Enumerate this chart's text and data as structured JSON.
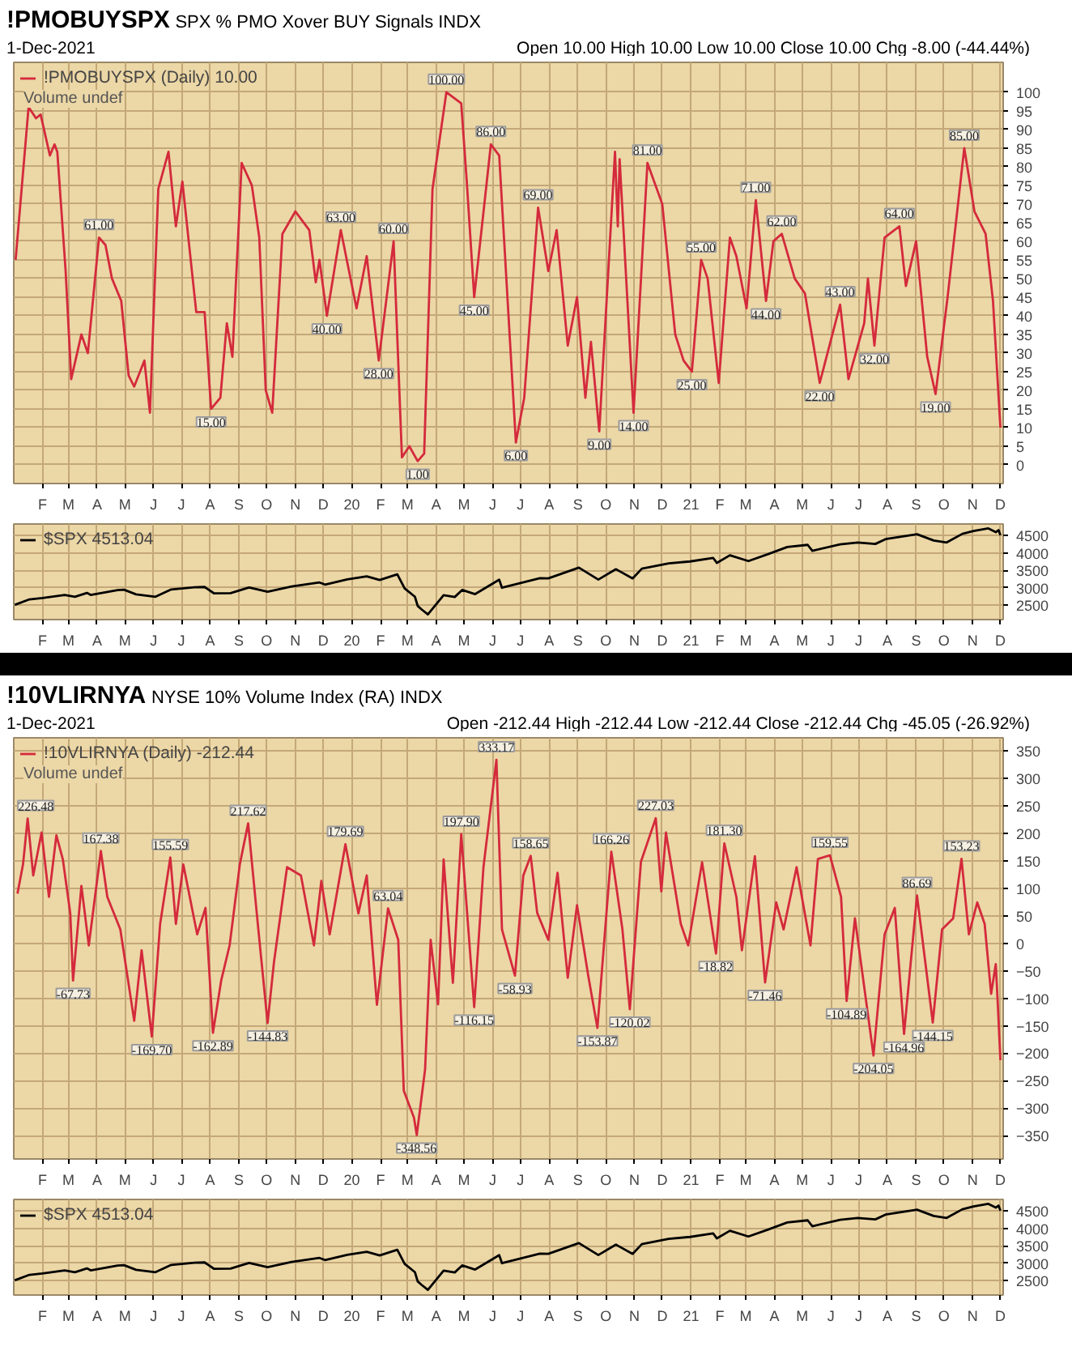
{
  "chart_data": [
    {
      "type": "line",
      "title": "!PMOBUYSPX",
      "subtitle": "SPX % PMO Xover BUY Signals INDX",
      "annotations": [
        "1-Dec-2021",
        "Open 10.00 High 10.00 Low 10.00 Close 10.00 Chg -8.00 (-44.44%)",
        "Volume undef",
        {
          "text": "61.00",
          "x": "2019-04-03",
          "y": 61
        },
        {
          "text": "15.00",
          "x": "2019-08-02",
          "y": 15
        },
        {
          "text": "40.00",
          "x": "2019-12-05",
          "y": 40
        },
        {
          "text": "63.00",
          "x": "2019-12-20",
          "y": 63
        },
        {
          "text": "28.00",
          "x": "2020-01-30",
          "y": 28
        },
        {
          "text": "60.00",
          "x": "2020-02-15",
          "y": 60
        },
        {
          "text": "1.00",
          "x": "2020-03-12",
          "y": 1
        },
        {
          "text": "100.00",
          "x": "2020-04-12",
          "y": 100
        },
        {
          "text": "45.00",
          "x": "2020-05-12",
          "y": 45
        },
        {
          "text": "86.00",
          "x": "2020-05-30",
          "y": 86
        },
        {
          "text": "6.00",
          "x": "2020-06-26",
          "y": 6
        },
        {
          "text": "69.00",
          "x": "2020-07-20",
          "y": 69
        },
        {
          "text": "9.00",
          "x": "2020-09-24",
          "y": 9
        },
        {
          "text": "14.00",
          "x": "2020-10-31",
          "y": 14
        },
        {
          "text": "81.00",
          "x": "2020-11-15",
          "y": 81
        },
        {
          "text": "25.00",
          "x": "2021-01-02",
          "y": 25
        },
        {
          "text": "55.00",
          "x": "2021-01-12",
          "y": 55
        },
        {
          "text": "71.00",
          "x": "2021-03-12",
          "y": 71
        },
        {
          "text": "44.00",
          "x": "2021-03-23",
          "y": 44
        },
        {
          "text": "62.00",
          "x": "2021-04-09",
          "y": 62
        },
        {
          "text": "22.00",
          "x": "2021-05-20",
          "y": 22
        },
        {
          "text": "43.00",
          "x": "2021-06-11",
          "y": 43
        },
        {
          "text": "32.00",
          "x": "2021-07-18",
          "y": 32
        },
        {
          "text": "64.00",
          "x": "2021-08-14",
          "y": 64
        },
        {
          "text": "19.00",
          "x": "2021-09-22",
          "y": 19
        },
        {
          "text": "85.00",
          "x": "2021-10-23",
          "y": 85
        }
      ],
      "series": [
        {
          "name": "!PMOBUYSPX (Daily) 10.00",
          "color": "#d42a3c",
          "x": [
            "2019-01-03",
            "2019-01-17",
            "2019-01-25",
            "2019-01-30",
            "2019-02-09",
            "2019-02-14",
            "2019-02-17",
            "2019-02-26",
            "2019-03-04",
            "2019-03-15",
            "2019-03-22",
            "2019-04-03",
            "2019-04-10",
            "2019-04-17",
            "2019-04-27",
            "2019-05-05",
            "2019-05-11",
            "2019-05-22",
            "2019-05-28",
            "2019-06-06",
            "2019-06-17",
            "2019-06-25",
            "2019-07-02",
            "2019-07-17",
            "2019-07-26",
            "2019-08-02",
            "2019-08-12",
            "2019-08-19",
            "2019-08-25",
            "2019-09-04",
            "2019-09-15",
            "2019-09-23",
            "2019-09-30",
            "2019-10-07",
            "2019-10-18",
            "2019-11-01",
            "2019-11-16",
            "2019-11-23",
            "2019-11-27",
            "2019-12-05",
            "2019-12-20",
            "2020-01-06",
            "2020-01-17",
            "2020-01-30",
            "2020-02-15",
            "2020-02-24",
            "2020-03-03",
            "2020-03-12",
            "2020-03-19",
            "2020-03-28",
            "2020-04-12",
            "2020-04-28",
            "2020-05-04",
            "2020-05-12",
            "2020-05-30",
            "2020-06-08",
            "2020-06-26",
            "2020-07-05",
            "2020-07-20",
            "2020-07-31",
            "2020-08-09",
            "2020-08-21",
            "2020-08-31",
            "2020-09-09",
            "2020-09-15",
            "2020-09-24",
            "2020-10-11",
            "2020-10-14",
            "2020-10-16",
            "2020-10-31",
            "2020-11-15",
            "2020-12-01",
            "2020-12-15",
            "2020-12-24",
            "2021-01-02",
            "2021-01-12",
            "2021-01-19",
            "2021-01-31",
            "2021-02-12",
            "2021-02-19",
            "2021-03-02",
            "2021-03-12",
            "2021-03-23",
            "2021-03-31",
            "2021-04-09",
            "2021-04-23",
            "2021-05-04",
            "2021-05-20",
            "2021-06-11",
            "2021-06-20",
            "2021-07-07",
            "2021-07-11",
            "2021-07-18",
            "2021-07-29",
            "2021-08-14",
            "2021-08-21",
            "2021-09-01",
            "2021-09-13",
            "2021-09-22",
            "2021-10-05",
            "2021-10-23",
            "2021-11-03",
            "2021-11-15",
            "2021-11-23",
            "2021-12-01"
          ],
          "values": [
            55,
            96,
            93,
            94,
            83,
            86,
            84,
            52,
            23,
            35,
            30,
            61,
            59,
            50,
            44,
            24,
            21,
            28,
            14,
            74,
            84,
            64,
            76,
            41,
            41,
            15,
            18,
            38,
            29,
            81,
            75,
            61,
            20,
            14,
            62,
            68,
            63,
            49,
            55,
            40,
            63,
            42,
            56,
            28,
            60,
            2,
            5,
            1,
            3,
            74,
            100,
            97,
            76,
            45,
            86,
            83,
            6,
            18,
            69,
            52,
            63,
            32,
            45,
            18,
            33,
            9,
            84,
            64,
            82,
            14,
            81,
            70,
            35,
            28,
            25,
            55,
            50,
            22,
            61,
            56,
            42,
            71,
            44,
            60,
            62,
            50,
            46,
            22,
            43,
            23,
            38,
            50,
            32,
            61,
            64,
            48,
            60,
            29,
            19,
            45,
            85,
            68,
            62,
            44,
            10
          ]
        }
      ],
      "xlim": [
        "2019-01-01",
        "2021-12-04"
      ],
      "ylim": [
        -5,
        108
      ],
      "yticks": [
        0,
        5,
        10,
        15,
        20,
        25,
        30,
        35,
        40,
        45,
        50,
        55,
        60,
        65,
        70,
        75,
        80,
        85,
        90,
        95,
        100
      ],
      "xticks": [
        {
          "value": "2019-02-01",
          "label": "F"
        },
        {
          "value": "2019-03-01",
          "label": "M"
        },
        {
          "value": "2019-04-01",
          "label": "A"
        },
        {
          "value": "2019-05-01",
          "label": "M"
        },
        {
          "value": "2019-06-01",
          "label": "J"
        },
        {
          "value": "2019-07-01",
          "label": "J"
        },
        {
          "value": "2019-08-01",
          "label": "A"
        },
        {
          "value": "2019-09-01",
          "label": "S"
        },
        {
          "value": "2019-10-01",
          "label": "O"
        },
        {
          "value": "2019-11-01",
          "label": "N"
        },
        {
          "value": "2019-12-01",
          "label": "D"
        },
        {
          "value": "2020-01-01",
          "label": "20"
        },
        {
          "value": "2020-02-01",
          "label": "F"
        },
        {
          "value": "2020-03-01",
          "label": "M"
        },
        {
          "value": "2020-04-01",
          "label": "A"
        },
        {
          "value": "2020-05-01",
          "label": "M"
        },
        {
          "value": "2020-06-01",
          "label": "J"
        },
        {
          "value": "2020-07-01",
          "label": "J"
        },
        {
          "value": "2020-08-01",
          "label": "A"
        },
        {
          "value": "2020-09-01",
          "label": "S"
        },
        {
          "value": "2020-10-01",
          "label": "O"
        },
        {
          "value": "2020-11-01",
          "label": "N"
        },
        {
          "value": "2020-12-01",
          "label": "D"
        },
        {
          "value": "2021-01-01",
          "label": "21"
        },
        {
          "value": "2021-02-01",
          "label": "F"
        },
        {
          "value": "2021-03-01",
          "label": "M"
        },
        {
          "value": "2021-04-01",
          "label": "A"
        },
        {
          "value": "2021-05-01",
          "label": "M"
        },
        {
          "value": "2021-06-01",
          "label": "J"
        },
        {
          "value": "2021-07-01",
          "label": "J"
        },
        {
          "value": "2021-08-01",
          "label": "A"
        },
        {
          "value": "2021-09-01",
          "label": "S"
        },
        {
          "value": "2021-10-01",
          "label": "O"
        },
        {
          "value": "2021-11-01",
          "label": "N"
        },
        {
          "value": "2021-12-01",
          "label": "D"
        }
      ],
      "grid": true,
      "legend": "top left"
    },
    {
      "type": "line",
      "series": [
        {
          "name": "$SPX 4513.04",
          "color": "#000000",
          "x": [
            "2019-01-02",
            "2019-01-18",
            "2019-02-01",
            "2019-02-25",
            "2019-03-08",
            "2019-03-21",
            "2019-03-25",
            "2019-04-23",
            "2019-04-30",
            "2019-05-13",
            "2019-06-03",
            "2019-06-20",
            "2019-07-15",
            "2019-07-26",
            "2019-08-05",
            "2019-08-23",
            "2019-09-12",
            "2019-10-02",
            "2019-10-28",
            "2019-11-27",
            "2019-12-03",
            "2019-12-27",
            "2020-01-17",
            "2020-01-31",
            "2020-02-19",
            "2020-02-27",
            "2020-03-09",
            "2020-03-12",
            "2020-03-16",
            "2020-03-23",
            "2020-04-09",
            "2020-04-21",
            "2020-04-29",
            "2020-05-13",
            "2020-06-08",
            "2020-06-11",
            "2020-07-22",
            "2020-07-31",
            "2020-09-02",
            "2020-09-23",
            "2020-10-12",
            "2020-10-30",
            "2020-11-09",
            "2020-12-08",
            "2020-12-31",
            "2021-01-25",
            "2021-01-29",
            "2021-02-12",
            "2021-03-04",
            "2021-03-26",
            "2021-04-15",
            "2021-05-07",
            "2021-05-12",
            "2021-06-11",
            "2021-06-30",
            "2021-07-19",
            "2021-07-30",
            "2021-09-02",
            "2021-09-20",
            "2021-10-04",
            "2021-10-21",
            "2021-11-02",
            "2021-11-18",
            "2021-11-26",
            "2021-11-29",
            "2021-12-01"
          ],
          "values": [
            2510,
            2670,
            2706,
            2796,
            2743,
            2855,
            2798,
            2934,
            2946,
            2812,
            2744,
            2954,
            3014,
            3025,
            2844,
            2847,
            3009,
            2887,
            3039,
            3153,
            3093,
            3240,
            3330,
            3226,
            3386,
            2979,
            2746,
            2481,
            2386,
            2237,
            2790,
            2737,
            2940,
            2820,
            3232,
            3002,
            3276,
            3271,
            3580,
            3237,
            3534,
            3270,
            3550,
            3702,
            3756,
            3855,
            3714,
            3934,
            3768,
            3975,
            4170,
            4232,
            4063,
            4247,
            4297,
            4258,
            4395,
            4537,
            4358,
            4300,
            4549,
            4631,
            4704,
            4595,
            4655,
            4513
          ]
        }
      ],
      "xlim": [
        "2019-01-01",
        "2021-12-04"
      ],
      "ylim": [
        2090,
        4830
      ],
      "yticks": [
        2500,
        3000,
        3500,
        4000,
        4500
      ],
      "xticks": [
        {
          "value": "2019-02-01",
          "label": "F"
        },
        {
          "value": "2019-03-01",
          "label": "M"
        },
        {
          "value": "2019-04-01",
          "label": "A"
        },
        {
          "value": "2019-05-01",
          "label": "M"
        },
        {
          "value": "2019-06-01",
          "label": "J"
        },
        {
          "value": "2019-07-01",
          "label": "J"
        },
        {
          "value": "2019-08-01",
          "label": "A"
        },
        {
          "value": "2019-09-01",
          "label": "S"
        },
        {
          "value": "2019-10-01",
          "label": "O"
        },
        {
          "value": "2019-11-01",
          "label": "N"
        },
        {
          "value": "2019-12-01",
          "label": "D"
        },
        {
          "value": "2020-01-01",
          "label": "20"
        },
        {
          "value": "2020-02-01",
          "label": "F"
        },
        {
          "value": "2020-03-01",
          "label": "M"
        },
        {
          "value": "2020-04-01",
          "label": "A"
        },
        {
          "value": "2020-05-01",
          "label": "M"
        },
        {
          "value": "2020-06-01",
          "label": "J"
        },
        {
          "value": "2020-07-01",
          "label": "J"
        },
        {
          "value": "2020-08-01",
          "label": "A"
        },
        {
          "value": "2020-09-01",
          "label": "S"
        },
        {
          "value": "2020-10-01",
          "label": "O"
        },
        {
          "value": "2020-11-01",
          "label": "N"
        },
        {
          "value": "2020-12-01",
          "label": "D"
        },
        {
          "value": "2021-01-01",
          "label": "21"
        },
        {
          "value": "2021-02-01",
          "label": "F"
        },
        {
          "value": "2021-03-01",
          "label": "M"
        },
        {
          "value": "2021-04-01",
          "label": "A"
        },
        {
          "value": "2021-05-01",
          "label": "M"
        },
        {
          "value": "2021-06-01",
          "label": "J"
        },
        {
          "value": "2021-07-01",
          "label": "J"
        },
        {
          "value": "2021-08-01",
          "label": "A"
        },
        {
          "value": "2021-09-01",
          "label": "S"
        },
        {
          "value": "2021-10-01",
          "label": "O"
        },
        {
          "value": "2021-11-01",
          "label": "N"
        },
        {
          "value": "2021-12-01",
          "label": "D"
        }
      ],
      "grid": true,
      "legend": "top left"
    },
    {
      "type": "line",
      "title": "!10VLIRNYA",
      "subtitle": "NYSE 10% Volume Index (RA) INDX",
      "annotations": [
        "1-Dec-2021",
        "Open -212.44 High -212.44 Low -212.44 Close -212.44 Chg -45.05 (-26.92%)",
        "Volume undef",
        {
          "text": "226.48",
          "x": "2019-01-16",
          "y": 226.48
        },
        {
          "text": "-67.73",
          "x": "2019-03-06",
          "y": -67.73
        },
        {
          "text": "167.38",
          "x": "2019-04-05",
          "y": 167.38
        },
        {
          "text": "-169.70",
          "x": "2019-05-30",
          "y": -169.7
        },
        {
          "text": "155.59",
          "x": "2019-06-19",
          "y": 155.59
        },
        {
          "text": "-162.89",
          "x": "2019-08-04",
          "y": -162.89
        },
        {
          "text": "217.62",
          "x": "2019-09-11",
          "y": 217.62
        },
        {
          "text": "-144.83",
          "x": "2019-10-02",
          "y": -144.83
        },
        {
          "text": "179.69",
          "x": "2019-12-25",
          "y": 179.69
        },
        {
          "text": "63.04",
          "x": "2020-02-09",
          "y": 63.04
        },
        {
          "text": "-348.56",
          "x": "2020-03-11",
          "y": -348.56
        },
        {
          "text": "197.90",
          "x": "2020-04-28",
          "y": 197.9
        },
        {
          "text": "-116.15",
          "x": "2020-05-12",
          "y": -116.15
        },
        {
          "text": "333.17",
          "x": "2020-06-05",
          "y": 333.17
        },
        {
          "text": "-58.93",
          "x": "2020-06-25",
          "y": -58.93
        },
        {
          "text": "158.65",
          "x": "2020-07-12",
          "y": 158.65
        },
        {
          "text": "-153.87",
          "x": "2020-09-22",
          "y": -153.87
        },
        {
          "text": "166.26",
          "x": "2020-10-07",
          "y": 166.26
        },
        {
          "text": "-120.02",
          "x": "2020-10-27",
          "y": -120.02
        },
        {
          "text": "227.03",
          "x": "2020-11-24",
          "y": 227.03
        },
        {
          "text": "-18.82",
          "x": "2021-01-28",
          "y": -18.82
        },
        {
          "text": "181.30",
          "x": "2021-02-06",
          "y": 181.3
        },
        {
          "text": "-71.46",
          "x": "2021-03-22",
          "y": -71.46
        },
        {
          "text": "159.55",
          "x": "2021-05-31",
          "y": 159.55
        },
        {
          "text": "-104.89",
          "x": "2021-06-18",
          "y": -104.89
        },
        {
          "text": "-204.05",
          "x": "2021-07-17",
          "y": -204.05
        },
        {
          "text": "-164.96",
          "x": "2021-08-19",
          "y": -164.96
        },
        {
          "text": "86.69",
          "x": "2021-09-02",
          "y": 86.69
        },
        {
          "text": "-144.15",
          "x": "2021-09-19",
          "y": -144.15
        },
        {
          "text": "153.23",
          "x": "2021-10-20",
          "y": 153.23
        }
      ],
      "series": [
        {
          "name": "!10VLIRNYA (Daily) -212.44",
          "color": "#d42a3c",
          "x": [
            "2019-01-05",
            "2019-01-11",
            "2019-01-16",
            "2019-01-22",
            "2019-01-31",
            "2019-02-08",
            "2019-02-16",
            "2019-02-23",
            "2019-03-03",
            "2019-03-06",
            "2019-03-15",
            "2019-03-23",
            "2019-04-05",
            "2019-04-12",
            "2019-04-26",
            "2019-05-11",
            "2019-05-19",
            "2019-05-30",
            "2019-06-08",
            "2019-06-19",
            "2019-06-25",
            "2019-07-03",
            "2019-07-18",
            "2019-07-27",
            "2019-08-04",
            "2019-08-13",
            "2019-08-22",
            "2019-09-02",
            "2019-09-11",
            "2019-09-22",
            "2019-10-02",
            "2019-10-09",
            "2019-10-23",
            "2019-11-07",
            "2019-11-21",
            "2019-11-29",
            "2019-12-08",
            "2019-12-25",
            "2020-01-08",
            "2020-01-17",
            "2020-01-28",
            "2020-02-09",
            "2020-02-20",
            "2020-02-26",
            "2020-03-08",
            "2020-03-11",
            "2020-03-20",
            "2020-03-26",
            "2020-04-03",
            "2020-04-09",
            "2020-04-19",
            "2020-04-28",
            "2020-05-12",
            "2020-05-22",
            "2020-06-05",
            "2020-06-11",
            "2020-06-25",
            "2020-07-04",
            "2020-07-12",
            "2020-07-19",
            "2020-07-31",
            "2020-08-10",
            "2020-08-21",
            "2020-08-31",
            "2020-09-12",
            "2020-09-22",
            "2020-10-07",
            "2020-10-19",
            "2020-10-27",
            "2020-11-08",
            "2020-11-24",
            "2020-11-30",
            "2020-12-05",
            "2020-12-21",
            "2020-12-29",
            "2021-01-13",
            "2021-01-28",
            "2021-02-06",
            "2021-02-19",
            "2021-02-25",
            "2021-03-11",
            "2021-03-22",
            "2021-04-03",
            "2021-04-11",
            "2021-04-25",
            "2021-05-10",
            "2021-05-18",
            "2021-05-31",
            "2021-06-12",
            "2021-06-18",
            "2021-06-27",
            "2021-07-17",
            "2021-07-29",
            "2021-08-09",
            "2021-08-19",
            "2021-09-02",
            "2021-09-19",
            "2021-09-29",
            "2021-10-11",
            "2021-10-20",
            "2021-10-28",
            "2021-11-06",
            "2021-11-14",
            "2021-11-21",
            "2021-11-26",
            "2021-11-28",
            "2021-12-01"
          ],
          "values": [
            90,
            143,
            226.48,
            123,
            201,
            84,
            196,
            152,
            54,
            -67.73,
            104,
            -4,
            167.38,
            84,
            25,
            -141,
            -13,
            -169.7,
            35,
            155.59,
            35,
            143,
            16,
            64,
            -162.89,
            -67,
            -4,
            143,
            217.62,
            25,
            -144.83,
            -33,
            138,
            123,
            -4,
            113,
            16,
            179.69,
            54,
            123,
            -112,
            63.04,
            6,
            -268,
            -317,
            -348.56,
            -229,
            6,
            -111,
            152,
            -72,
            197.9,
            -116.15,
            138,
            333.17,
            25,
            -58.93,
            123,
            158.65,
            55,
            6,
            128,
            -63,
            69,
            -58,
            -153.87,
            166.26,
            25,
            -120.02,
            148,
            227.03,
            94,
            201,
            35,
            -4,
            147,
            -18.82,
            181.3,
            84,
            -13,
            158,
            -71.46,
            74,
            25,
            138,
            -4,
            153,
            159.55,
            84,
            -104.89,
            45,
            -204.05,
            16,
            64,
            -164.96,
            86.69,
            -144.15,
            25,
            45,
            153.23,
            16,
            74,
            35,
            -92,
            -38,
            -104,
            -212.44
          ]
        }
      ],
      "xlim": [
        "2019-01-01",
        "2021-12-04"
      ],
      "ylim": [
        -392,
        373
      ],
      "yticks": [
        -350,
        -300,
        -250,
        -200,
        -150,
        -100,
        -50,
        0,
        50,
        100,
        150,
        200,
        250,
        300,
        350
      ],
      "xticks": [
        {
          "value": "2019-02-01",
          "label": "F"
        },
        {
          "value": "2019-03-01",
          "label": "M"
        },
        {
          "value": "2019-04-01",
          "label": "A"
        },
        {
          "value": "2019-05-01",
          "label": "M"
        },
        {
          "value": "2019-06-01",
          "label": "J"
        },
        {
          "value": "2019-07-01",
          "label": "J"
        },
        {
          "value": "2019-08-01",
          "label": "A"
        },
        {
          "value": "2019-09-01",
          "label": "S"
        },
        {
          "value": "2019-10-01",
          "label": "O"
        },
        {
          "value": "2019-11-01",
          "label": "N"
        },
        {
          "value": "2019-12-01",
          "label": "D"
        },
        {
          "value": "2020-01-01",
          "label": "20"
        },
        {
          "value": "2020-02-01",
          "label": "F"
        },
        {
          "value": "2020-03-01",
          "label": "M"
        },
        {
          "value": "2020-04-01",
          "label": "A"
        },
        {
          "value": "2020-05-01",
          "label": "M"
        },
        {
          "value": "2020-06-01",
          "label": "J"
        },
        {
          "value": "2020-07-01",
          "label": "J"
        },
        {
          "value": "2020-08-01",
          "label": "A"
        },
        {
          "value": "2020-09-01",
          "label": "S"
        },
        {
          "value": "2020-10-01",
          "label": "O"
        },
        {
          "value": "2020-11-01",
          "label": "N"
        },
        {
          "value": "2020-12-01",
          "label": "D"
        },
        {
          "value": "2021-01-01",
          "label": "21"
        },
        {
          "value": "2021-02-01",
          "label": "F"
        },
        {
          "value": "2021-03-01",
          "label": "M"
        },
        {
          "value": "2021-04-01",
          "label": "A"
        },
        {
          "value": "2021-05-01",
          "label": "M"
        },
        {
          "value": "2021-06-01",
          "label": "J"
        },
        {
          "value": "2021-07-01",
          "label": "J"
        },
        {
          "value": "2021-08-01",
          "label": "A"
        },
        {
          "value": "2021-09-01",
          "label": "S"
        },
        {
          "value": "2021-10-01",
          "label": "O"
        },
        {
          "value": "2021-11-01",
          "label": "N"
        },
        {
          "value": "2021-12-01",
          "label": "D"
        }
      ],
      "grid": true,
      "legend": "top left"
    },
    {
      "type": "line",
      "series": [
        {
          "name": "$SPX 4513.04",
          "color": "#000000",
          "x": [
            "2019-01-02",
            "2019-01-18",
            "2019-02-01",
            "2019-02-25",
            "2019-03-08",
            "2019-03-21",
            "2019-03-25",
            "2019-04-23",
            "2019-04-30",
            "2019-05-13",
            "2019-06-03",
            "2019-06-20",
            "2019-07-15",
            "2019-07-26",
            "2019-08-05",
            "2019-08-23",
            "2019-09-12",
            "2019-10-02",
            "2019-10-28",
            "2019-11-27",
            "2019-12-03",
            "2019-12-27",
            "2020-01-17",
            "2020-01-31",
            "2020-02-19",
            "2020-02-27",
            "2020-03-09",
            "2020-03-12",
            "2020-03-16",
            "2020-03-23",
            "2020-04-09",
            "2020-04-21",
            "2020-04-29",
            "2020-05-13",
            "2020-06-08",
            "2020-06-11",
            "2020-07-22",
            "2020-07-31",
            "2020-09-02",
            "2020-09-23",
            "2020-10-12",
            "2020-10-30",
            "2020-11-09",
            "2020-12-08",
            "2020-12-31",
            "2021-01-25",
            "2021-01-29",
            "2021-02-12",
            "2021-03-04",
            "2021-03-26",
            "2021-04-15",
            "2021-05-07",
            "2021-05-12",
            "2021-06-11",
            "2021-06-30",
            "2021-07-19",
            "2021-07-30",
            "2021-09-02",
            "2021-09-20",
            "2021-10-04",
            "2021-10-21",
            "2021-11-02",
            "2021-11-18",
            "2021-11-26",
            "2021-11-29",
            "2021-12-01"
          ],
          "values": [
            2510,
            2670,
            2706,
            2796,
            2743,
            2855,
            2798,
            2934,
            2946,
            2812,
            2744,
            2954,
            3014,
            3025,
            2844,
            2847,
            3009,
            2887,
            3039,
            3153,
            3093,
            3240,
            3330,
            3226,
            3386,
            2979,
            2746,
            2481,
            2386,
            2237,
            2790,
            2737,
            2940,
            2820,
            3232,
            3002,
            3276,
            3271,
            3580,
            3237,
            3534,
            3270,
            3550,
            3702,
            3756,
            3855,
            3714,
            3934,
            3768,
            3975,
            4170,
            4232,
            4063,
            4247,
            4297,
            4258,
            4395,
            4537,
            4358,
            4300,
            4549,
            4631,
            4704,
            4595,
            4655,
            4513
          ]
        }
      ],
      "xlim": [
        "2019-01-01",
        "2021-12-04"
      ],
      "ylim": [
        2090,
        4830
      ],
      "yticks": [
        2500,
        3000,
        3500,
        4000,
        4500
      ],
      "xticks": [
        {
          "value": "2019-02-01",
          "label": "F"
        },
        {
          "value": "2019-03-01",
          "label": "M"
        },
        {
          "value": "2019-04-01",
          "label": "A"
        },
        {
          "value": "2019-05-01",
          "label": "M"
        },
        {
          "value": "2019-06-01",
          "label": "J"
        },
        {
          "value": "2019-07-01",
          "label": "J"
        },
        {
          "value": "2019-08-01",
          "label": "A"
        },
        {
          "value": "2019-09-01",
          "label": "S"
        },
        {
          "value": "2019-10-01",
          "label": "O"
        },
        {
          "value": "2019-11-01",
          "label": "N"
        },
        {
          "value": "2019-12-01",
          "label": "D"
        },
        {
          "value": "2020-01-01",
          "label": "20"
        },
        {
          "value": "2020-02-01",
          "label": "F"
        },
        {
          "value": "2020-03-01",
          "label": "M"
        },
        {
          "value": "2020-04-01",
          "label": "A"
        },
        {
          "value": "2020-05-01",
          "label": "M"
        },
        {
          "value": "2020-06-01",
          "label": "J"
        },
        {
          "value": "2020-07-01",
          "label": "J"
        },
        {
          "value": "2020-08-01",
          "label": "A"
        },
        {
          "value": "2020-09-01",
          "label": "S"
        },
        {
          "value": "2020-10-01",
          "label": "O"
        },
        {
          "value": "2020-11-01",
          "label": "N"
        },
        {
          "value": "2020-12-01",
          "label": "D"
        },
        {
          "value": "2021-01-01",
          "label": "21"
        },
        {
          "value": "2021-02-01",
          "label": "F"
        },
        {
          "value": "2021-03-01",
          "label": "M"
        },
        {
          "value": "2021-04-01",
          "label": "A"
        },
        {
          "value": "2021-05-01",
          "label": "M"
        },
        {
          "value": "2021-06-01",
          "label": "J"
        },
        {
          "value": "2021-07-01",
          "label": "J"
        },
        {
          "value": "2021-08-01",
          "label": "A"
        },
        {
          "value": "2021-09-01",
          "label": "S"
        },
        {
          "value": "2021-10-01",
          "label": "O"
        },
        {
          "value": "2021-11-01",
          "label": "N"
        },
        {
          "value": "2021-12-01",
          "label": "D"
        }
      ],
      "grid": true,
      "legend": "top left"
    }
  ]
}
